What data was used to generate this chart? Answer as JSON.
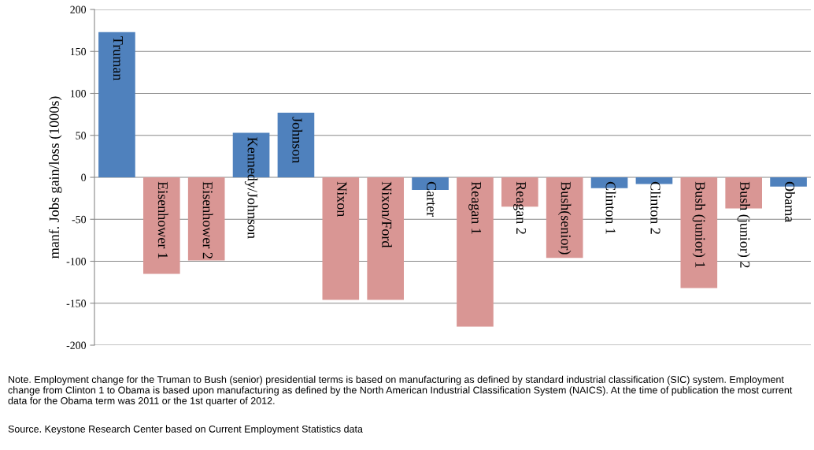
{
  "chart_data": {
    "type": "bar",
    "ylabel": "manf. Jobs gain/loss (1000s)",
    "categories": [
      "Truman",
      "Eisenhower 1",
      "Eisenhower 2",
      "Kennedy/Johnson",
      "Johnson",
      "Nixon",
      "Nixon/Ford",
      "Carter",
      "Reagan 1",
      "Reagan 2",
      "Bush(senior)",
      "Clinton 1",
      "Clinton 2",
      "Bush (junior) 1",
      "Bush (junior) 2",
      "Obama"
    ],
    "values": [
      173,
      -115,
      -99,
      53,
      77,
      -146,
      -146,
      -15,
      -178,
      -35,
      -96,
      -13,
      -8,
      -132,
      -37,
      -11
    ],
    "colors": [
      "#4f81bd",
      "#d99694",
      "#d99694",
      "#4f81bd",
      "#4f81bd",
      "#d99694",
      "#d99694",
      "#4f81bd",
      "#d99694",
      "#d99694",
      "#d99694",
      "#4f81bd",
      "#4f81bd",
      "#d99694",
      "#d99694",
      "#4f81bd"
    ],
    "ylim": [
      -200,
      200
    ],
    "yticks": [
      -200,
      -150,
      -100,
      -50,
      0,
      50,
      100,
      150,
      200
    ],
    "grid": "y",
    "annotations": [
      "Note. Employment change for the Truman to Bush (senior) presidential terms is based on manufacturing as defined by standard industrial classification (SIC) system. Employment change from Clinton 1 to Obama is based upon manufacturing as defined by the North American Industrial Classification System (NAICS). At the time of publication the most current data for the Obama term was 2011 or the 1st quarter of 2012.",
      "Source. Keystone Research Center based on Current Employment Statistics data"
    ]
  }
}
